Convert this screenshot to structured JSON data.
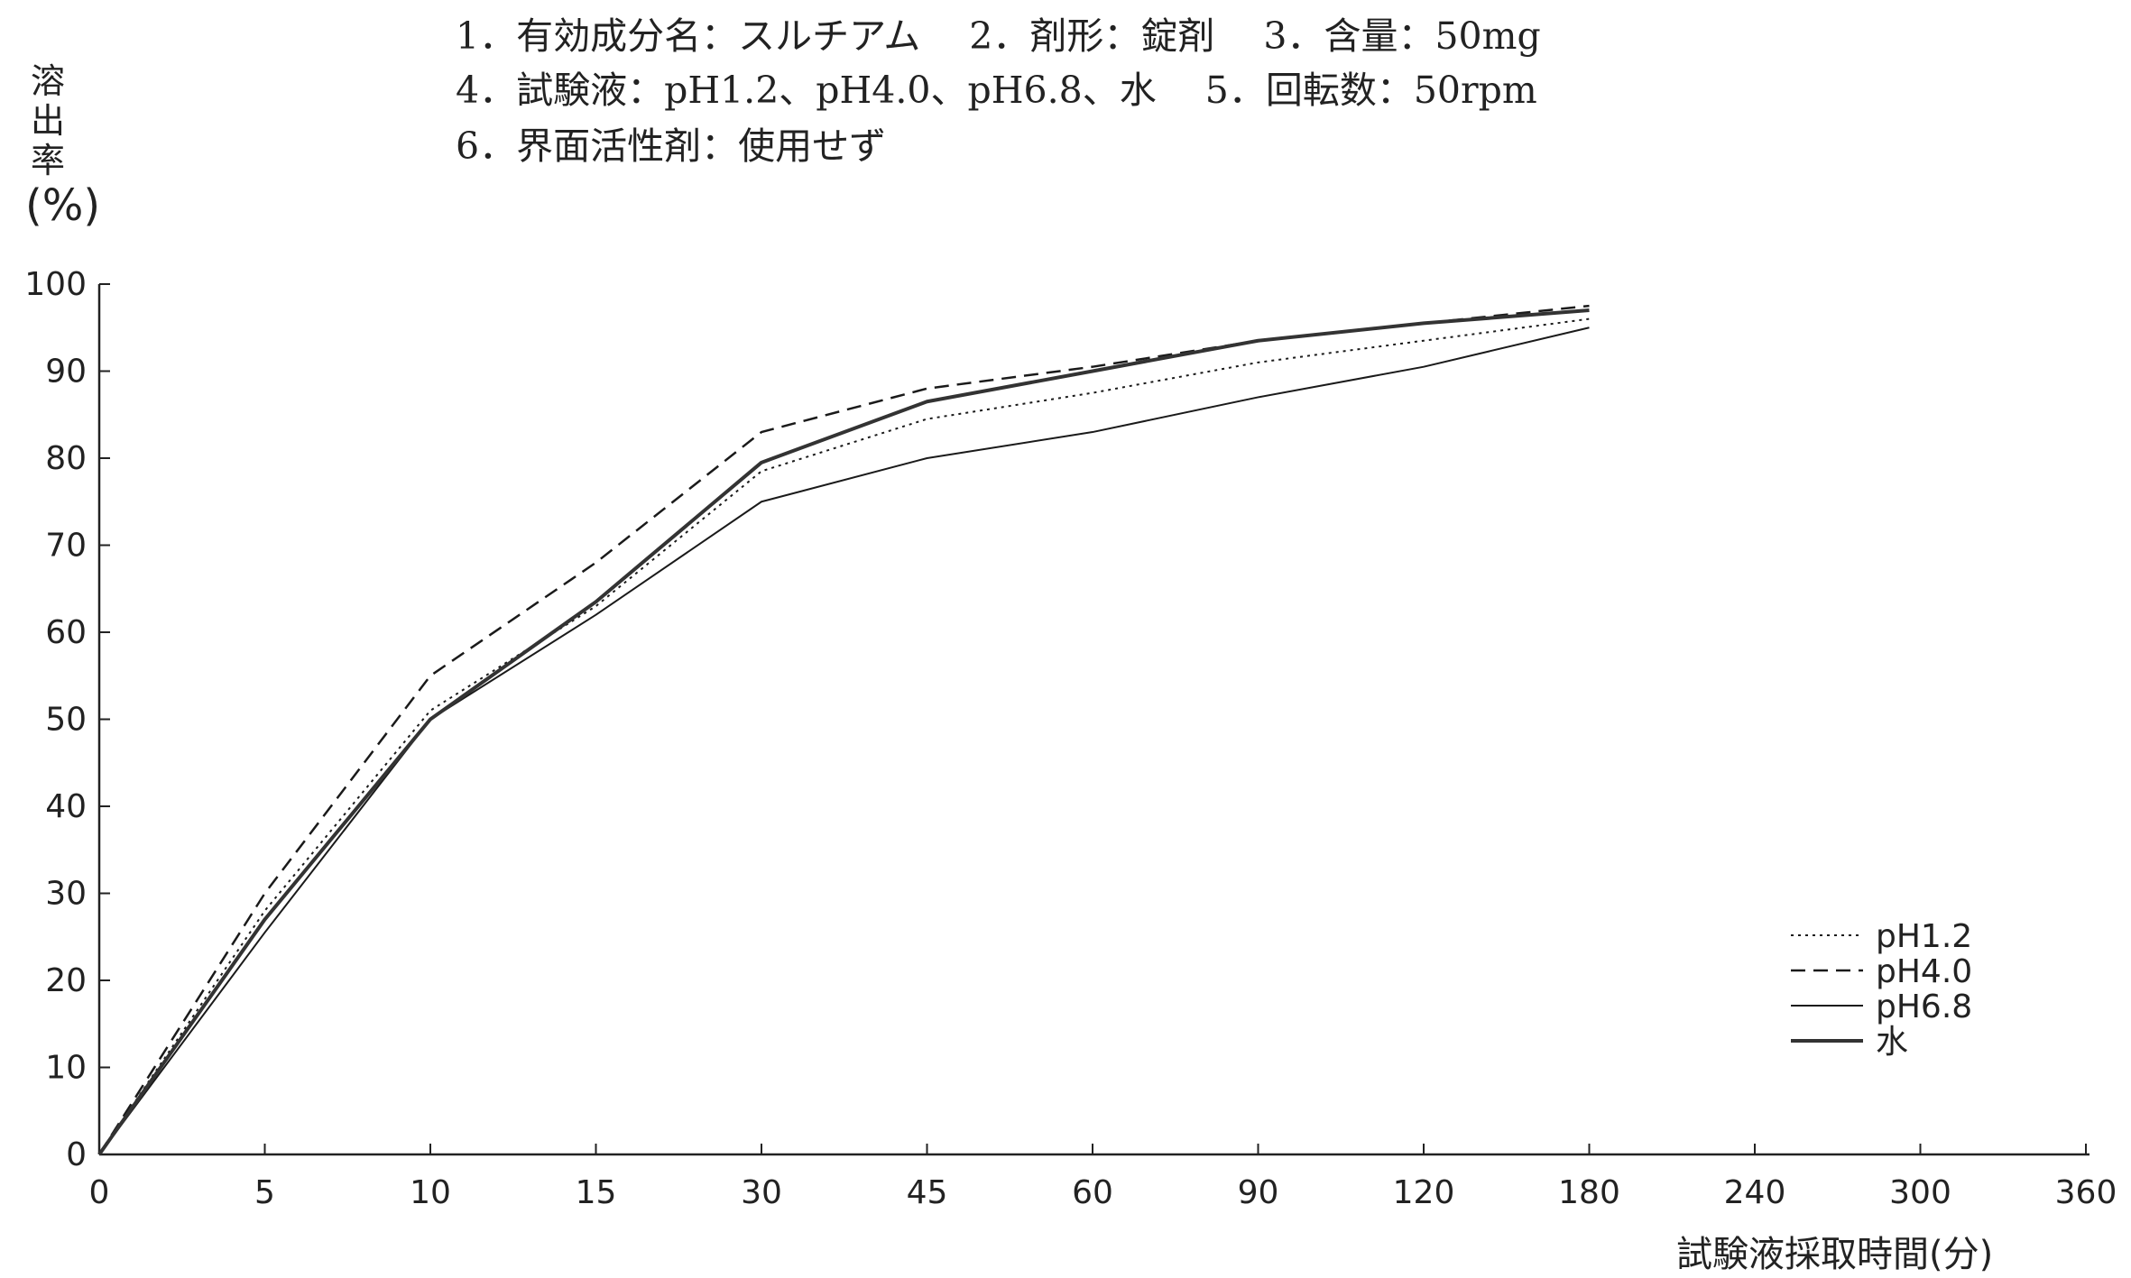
{
  "header": {
    "line1": "1．有効成分名：スルチアム　 2．剤形：錠剤　 3．含量：50mg",
    "line2": "4．試験液：pH1.2、pH4.0、pH6.8、水　 5．回転数：50rpm",
    "line3": "6．界面活性剤：使用せず"
  },
  "chart_data": {
    "type": "line",
    "title": "",
    "ylabel": "溶出率(%)",
    "ylabel_chars": [
      "溶",
      "出",
      "率",
      "(%)"
    ],
    "xlabel": "試験液採取時間(分)",
    "x_categories": [
      "0",
      "5",
      "10",
      "15",
      "30",
      "45",
      "60",
      "90",
      "120",
      "180",
      "240",
      "300",
      "360"
    ],
    "yticks": [
      "0",
      "10",
      "20",
      "30",
      "40",
      "50",
      "60",
      "70",
      "80",
      "90",
      "100"
    ],
    "ylim": [
      0,
      100
    ],
    "grid": false,
    "legend_position": "bottom-right",
    "series": [
      {
        "name": "pH1.2",
        "style": "dotted",
        "x": [
          0,
          5,
          10,
          15,
          30,
          45,
          60,
          90,
          120,
          180
        ],
        "values": [
          0,
          28,
          51,
          63,
          78.5,
          84.5,
          87.5,
          91,
          93.5,
          96
        ]
      },
      {
        "name": "pH4.0",
        "style": "dashed",
        "x": [
          0,
          5,
          10,
          15,
          30,
          45,
          60,
          90,
          120,
          180
        ],
        "values": [
          0,
          30,
          55,
          68,
          83,
          88,
          90.5,
          93.5,
          95.5,
          97.5
        ]
      },
      {
        "name": "pH6.8",
        "style": "solid",
        "x": [
          0,
          5,
          10,
          15,
          30,
          45,
          60,
          90,
          120,
          180
        ],
        "values": [
          0,
          25.5,
          50,
          62,
          75,
          80,
          83,
          87,
          90.5,
          95
        ]
      },
      {
        "name": "水",
        "style": "double",
        "x": [
          0,
          5,
          10,
          15,
          30,
          45,
          60,
          90,
          120,
          180
        ],
        "values": [
          0,
          27,
          50,
          63.5,
          79.5,
          86.5,
          90,
          93.5,
          95.5,
          97
        ]
      }
    ]
  }
}
